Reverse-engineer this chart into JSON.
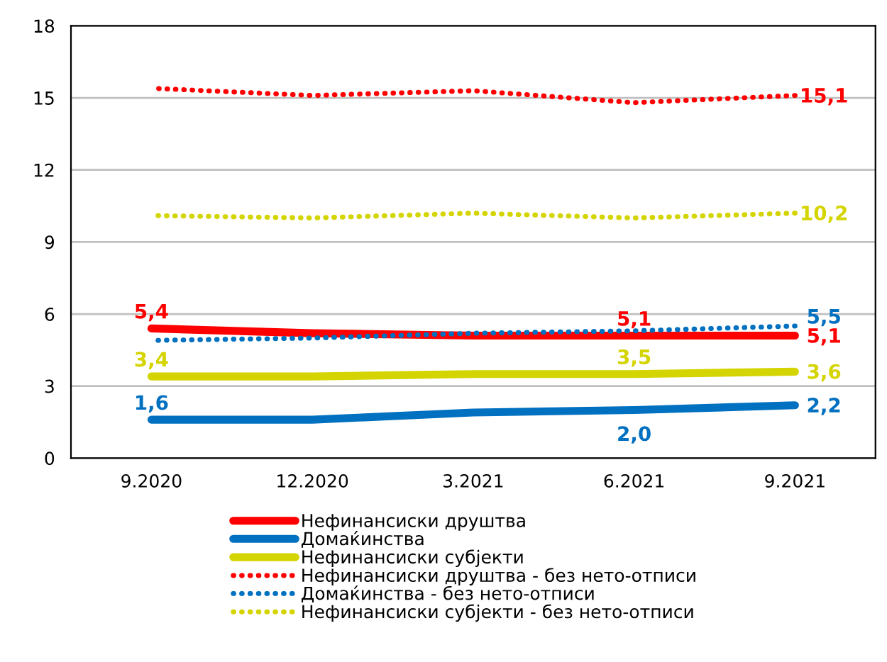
{
  "chart_data": {
    "type": "line",
    "categories": [
      "9.2020",
      "12.2020",
      "3.2021",
      "6.2021",
      "9.2021"
    ],
    "series": [
      {
        "name": "Нефинансиски друштва",
        "color": "#ff0000",
        "line_style": "solid",
        "values": [
          5.4,
          5.2,
          5.1,
          5.1,
          5.1
        ],
        "value_labels": [
          "5,4",
          null,
          null,
          "5,1",
          "5,1"
        ]
      },
      {
        "name": "Домаќинства",
        "color": "#0070c0",
        "line_style": "solid",
        "values": [
          1.6,
          1.6,
          1.9,
          2.0,
          2.2
        ],
        "value_labels": [
          "1,6",
          null,
          null,
          "2,0",
          "2,2"
        ]
      },
      {
        "name": "Нефинансиски субјекти",
        "color": "#d4d400",
        "line_style": "solid",
        "values": [
          3.4,
          3.4,
          3.5,
          3.5,
          3.6
        ],
        "value_labels": [
          "3,4",
          null,
          null,
          "3,5",
          "3,6"
        ]
      },
      {
        "name": "Нефинансиски друштва - без нето-отписи",
        "color": "#ff0000",
        "line_style": "dotted",
        "values": [
          15.4,
          15.1,
          15.3,
          14.8,
          15.1
        ],
        "value_labels": [
          null,
          null,
          null,
          null,
          "15,1"
        ]
      },
      {
        "name": "Домаќинства - без нето-отписи",
        "color": "#0070c0",
        "line_style": "dotted",
        "values": [
          4.9,
          5.0,
          5.2,
          5.3,
          5.5
        ],
        "value_labels": [
          null,
          null,
          null,
          null,
          "5,5"
        ]
      },
      {
        "name": "Нефинансиски субјекти - без нето-отписи",
        "color": "#d4d400",
        "line_style": "dotted",
        "values": [
          10.1,
          10.0,
          10.2,
          10.0,
          10.2
        ],
        "value_labels": [
          null,
          null,
          null,
          null,
          "10,2"
        ]
      }
    ],
    "ylim": [
      0,
      18
    ],
    "yticks": [
      0,
      3,
      6,
      9,
      12,
      15,
      18
    ],
    "grid": "y",
    "legend": "bottom",
    "marker": "none"
  }
}
